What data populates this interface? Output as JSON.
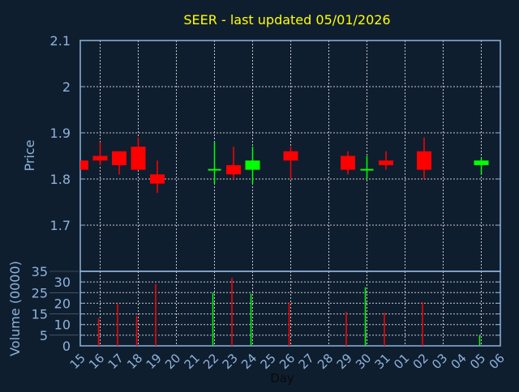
{
  "chart_data": {
    "type": "candlestick",
    "title": "SEER - last updated 05/01/2026",
    "xlabel": "Day",
    "ylabel": "Price",
    "volume_label": "Volume (0000)",
    "price_ylim": [
      1.6,
      2.1
    ],
    "price_ticks": [
      "1.7",
      "1.8",
      "1.9",
      "2",
      "2.1"
    ],
    "volume_ylim": [
      0,
      35
    ],
    "volume_ticks": [
      "0",
      "5",
      "10",
      "15",
      "20",
      "25",
      "30",
      "35"
    ],
    "x_ticks": [
      "15",
      "16",
      "17",
      "18",
      "19",
      "20",
      "21",
      "22",
      "23",
      "24",
      "25",
      "26",
      "27",
      "28",
      "29",
      "30",
      "31",
      "01",
      "02",
      "03",
      "04",
      "05",
      "06"
    ],
    "grid": true,
    "colors": {
      "up": "#00ff00",
      "down": "#ff0000",
      "title": "#ffff00",
      "axis": "#8fb3dc",
      "background": "#0f1e2f"
    },
    "candles": [
      {
        "day": "15",
        "open": 1.84,
        "high": 1.84,
        "low": 1.82,
        "close": 1.82,
        "volume": null
      },
      {
        "day": "16",
        "open": 1.85,
        "high": 1.88,
        "low": 1.83,
        "close": 1.84,
        "volume": 13
      },
      {
        "day": "17",
        "open": 1.86,
        "high": 1.86,
        "low": 1.81,
        "close": 1.83,
        "volume": 20
      },
      {
        "day": "18",
        "open": 1.87,
        "high": 1.89,
        "low": 1.82,
        "close": 1.82,
        "volume": 14
      },
      {
        "day": "19",
        "open": 1.81,
        "high": 1.84,
        "low": 1.77,
        "close": 1.79,
        "volume": 29
      },
      {
        "day": "22",
        "open": 1.82,
        "high": 1.88,
        "low": 1.79,
        "close": 1.82,
        "volume": 25
      },
      {
        "day": "23",
        "open": 1.83,
        "high": 1.87,
        "low": 1.8,
        "close": 1.81,
        "volume": 32
      },
      {
        "day": "24",
        "open": 1.82,
        "high": 1.87,
        "low": 1.79,
        "close": 1.84,
        "volume": 24.5
      },
      {
        "day": "26",
        "open": 1.86,
        "high": 1.87,
        "low": 1.8,
        "close": 1.84,
        "volume": 20.5
      },
      {
        "day": "29",
        "open": 1.85,
        "high": 1.86,
        "low": 1.81,
        "close": 1.82,
        "volume": 16
      },
      {
        "day": "30",
        "open": 1.82,
        "high": 1.85,
        "low": 1.8,
        "close": 1.82,
        "volume": 27.5
      },
      {
        "day": "31",
        "open": 1.84,
        "high": 1.86,
        "low": 1.82,
        "close": 1.83,
        "volume": 15.5
      },
      {
        "day": "02",
        "open": 1.86,
        "high": 1.89,
        "low": 1.8,
        "close": 1.82,
        "volume": 20.5
      },
      {
        "day": "05",
        "open": 1.83,
        "high": 1.845,
        "low": 1.81,
        "close": 1.84,
        "volume": 5
      }
    ]
  }
}
